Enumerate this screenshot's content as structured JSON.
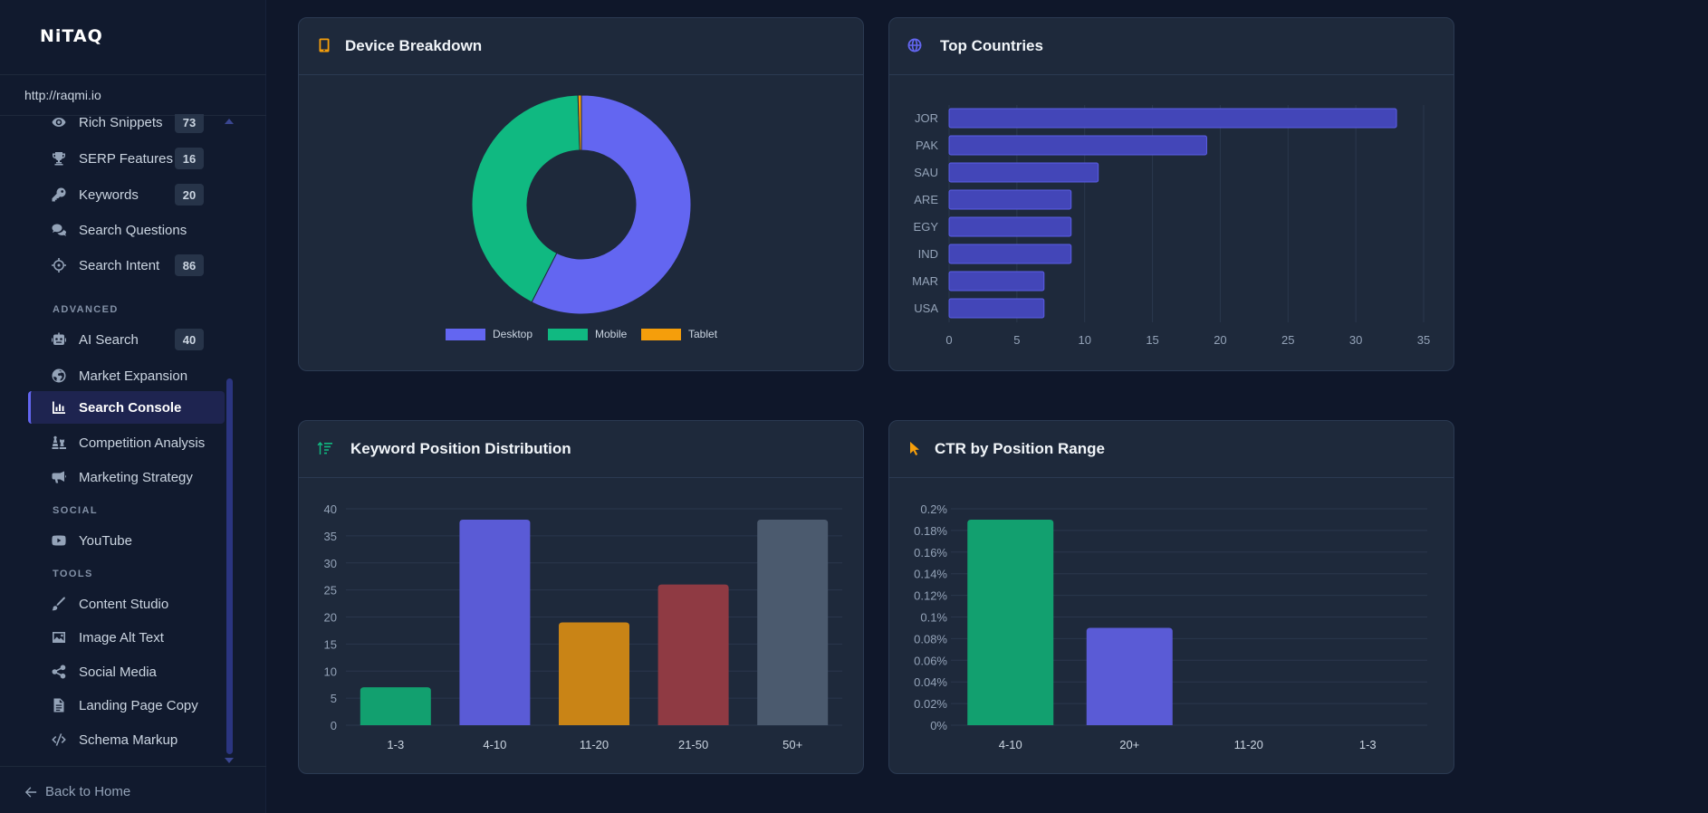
{
  "app": {
    "logo": "NiTAQ",
    "site_url": "http://raqmi.io"
  },
  "sidebar": {
    "items": [
      {
        "label": "Rich Snippets",
        "badge": "73",
        "icon": "eye-icon"
      },
      {
        "label": "SERP Features",
        "badge": "16",
        "icon": "trophy-icon"
      },
      {
        "label": "Keywords",
        "badge": "20",
        "icon": "key-icon"
      },
      {
        "label": "Search Questions",
        "badge": "",
        "icon": "comments-icon"
      },
      {
        "label": "Search Intent",
        "badge": "86",
        "icon": "crosshair-icon"
      },
      {
        "label": "AI Search",
        "badge": "40",
        "icon": "robot-icon"
      },
      {
        "label": "Market Expansion",
        "badge": "",
        "icon": "globe-icon"
      },
      {
        "label": "Search Console",
        "badge": "",
        "icon": "chart-bar-icon"
      },
      {
        "label": "Competition Analysis",
        "badge": "",
        "icon": "chess-icon"
      },
      {
        "label": "Marketing Strategy",
        "badge": "",
        "icon": "megaphone-icon"
      },
      {
        "label": "YouTube",
        "badge": "",
        "icon": "youtube-icon"
      },
      {
        "label": "Content Studio",
        "badge": "",
        "icon": "pen-icon"
      },
      {
        "label": "Image Alt Text",
        "badge": "",
        "icon": "image-icon"
      },
      {
        "label": "Social Media",
        "badge": "",
        "icon": "share-icon"
      },
      {
        "label": "Landing Page Copy",
        "badge": "",
        "icon": "file-icon"
      },
      {
        "label": "Schema Markup",
        "badge": "",
        "icon": "code-icon"
      }
    ],
    "sections": {
      "advanced": "ADVANCED",
      "social": "SOCIAL",
      "tools": "TOOLS"
    },
    "active_item": "Search Console",
    "back_label": "Back to Home"
  },
  "cards": {
    "device": {
      "title": "Device Breakdown"
    },
    "countries": {
      "title": "Top Countries"
    },
    "positions": {
      "title": "Keyword Position Distribution"
    },
    "ctr": {
      "title": "CTR by Position Range"
    }
  },
  "colors": {
    "indigo": "#6366f1",
    "green": "#10b981",
    "amber": "#f59e0b",
    "red": "#8f3a43",
    "slate": "#4b5a6e"
  },
  "chart_data": [
    {
      "id": "device",
      "type": "pie",
      "title": "Device Breakdown",
      "categories": [
        "Desktop",
        "Mobile",
        "Tablet"
      ],
      "values": [
        57.5,
        42,
        0.5
      ],
      "colors": [
        "#6366f1",
        "#10b981",
        "#f59e0b"
      ],
      "legend": "bottom"
    },
    {
      "id": "countries",
      "type": "bar",
      "orientation": "horizontal",
      "title": "Top Countries",
      "categories": [
        "JOR",
        "PAK",
        "SAU",
        "ARE",
        "EGY",
        "IND",
        "MAR",
        "USA"
      ],
      "values": [
        33,
        19,
        11,
        9,
        9,
        9,
        7,
        7
      ],
      "xlim": [
        0,
        35
      ],
      "xticks": [
        "0",
        "5",
        "10",
        "15",
        "20",
        "25",
        "30",
        "35"
      ]
    },
    {
      "id": "positions",
      "type": "bar",
      "title": "Keyword Position Distribution",
      "categories": [
        "1-3",
        "4-10",
        "11-20",
        "21-50",
        "50+"
      ],
      "values": [
        7,
        38,
        19,
        26,
        38
      ],
      "colors": [
        "#12a06f",
        "#5a5bd6",
        "#c98416",
        "#8f3a43",
        "#4b5a6e"
      ],
      "ylim": [
        0,
        40
      ],
      "yticks": [
        "0",
        "5",
        "10",
        "15",
        "20",
        "25",
        "30",
        "35",
        "40"
      ]
    },
    {
      "id": "ctr",
      "type": "bar",
      "title": "CTR by Position Range",
      "categories": [
        "4-10",
        "20+",
        "11-20",
        "1-3"
      ],
      "values": [
        0.19,
        0.09,
        0,
        0
      ],
      "colors": [
        "#12a06f",
        "#5a5bd6",
        "#c98416",
        "#8f3a43"
      ],
      "ylim": [
        0,
        0.2
      ],
      "yticks": [
        "0%",
        "0.02%",
        "0.04%",
        "0.06%",
        "0.08%",
        "0.1%",
        "0.12%",
        "0.14%",
        "0.16%",
        "0.18%",
        "0.2%"
      ]
    }
  ]
}
